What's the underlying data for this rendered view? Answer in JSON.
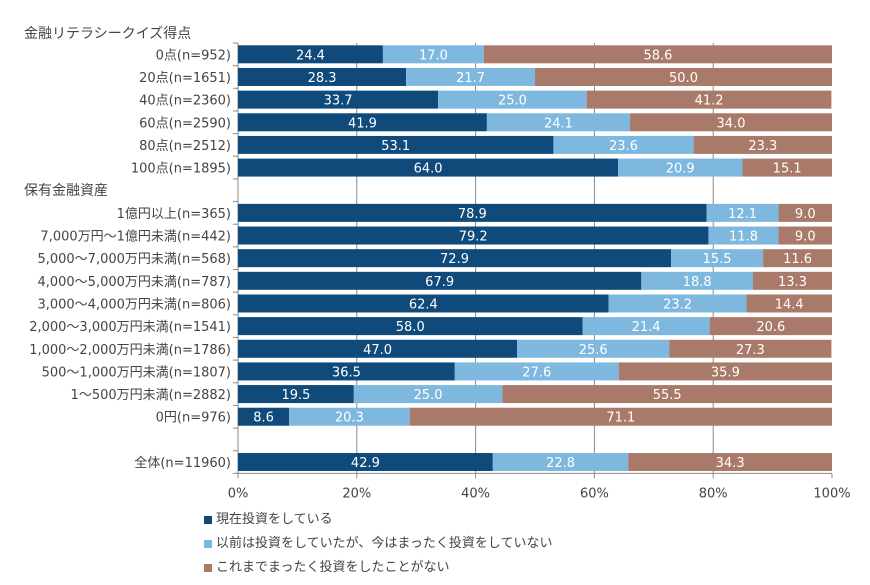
{
  "chart_data": {
    "type": "bar",
    "orientation": "horizontal",
    "stacked": true,
    "xlim": [
      0,
      100
    ],
    "x_ticks": [
      "0%",
      "20%",
      "40%",
      "60%",
      "80%",
      "100%"
    ],
    "grid": true,
    "legend_position": "bottom-left",
    "groups": [
      {
        "title": "金融リテラシークイズ得点",
        "categories": [
          "0点(n=952)",
          "20点(n=1651)",
          "40点(n=2360)",
          "60点(n=2590)",
          "80点(n=2512)",
          "100点(n=1895)"
        ]
      },
      {
        "title": "保有金融資産",
        "categories": [
          "1億円以上(n=365)",
          "7,000万円～1億円未満(n=442)",
          "5,000～7,000万円未満(n=568)",
          "4,000～5,000万円未満(n=787)",
          "3,000～4,000万円未満(n=806)",
          "2,000～3,000万円未満(n=1541)",
          "1,000～2,000万円未満(n=1786)",
          "500～1,000万円未満(n=1807)",
          "1～500万円未満(n=2882)",
          "0円(n=976)"
        ]
      },
      {
        "title": "",
        "categories": [
          "全体(n=11960)"
        ]
      }
    ],
    "series": [
      {
        "name": "現在投資をしている",
        "color": "#0f4a7b",
        "values": [
          24.4,
          28.3,
          33.7,
          41.9,
          53.1,
          64.0,
          78.9,
          79.2,
          72.9,
          67.9,
          62.4,
          58.0,
          47.0,
          36.5,
          19.5,
          8.6,
          42.9
        ]
      },
      {
        "name": "以前は投資をしていたが、今はまったく投資をしていない",
        "color": "#7fb8df",
        "values": [
          17.0,
          21.7,
          25.0,
          24.1,
          23.6,
          20.9,
          12.1,
          11.8,
          15.5,
          18.8,
          23.2,
          21.4,
          25.6,
          27.6,
          25.0,
          20.3,
          22.8
        ]
      },
      {
        "name": "これまでまったく投資をしたことがない",
        "color": "#a97a69",
        "values": [
          58.6,
          50.0,
          41.2,
          34.0,
          23.3,
          15.1,
          9.0,
          9.0,
          11.6,
          13.3,
          14.4,
          20.6,
          27.3,
          35.9,
          55.5,
          71.1,
          34.3
        ]
      }
    ]
  }
}
